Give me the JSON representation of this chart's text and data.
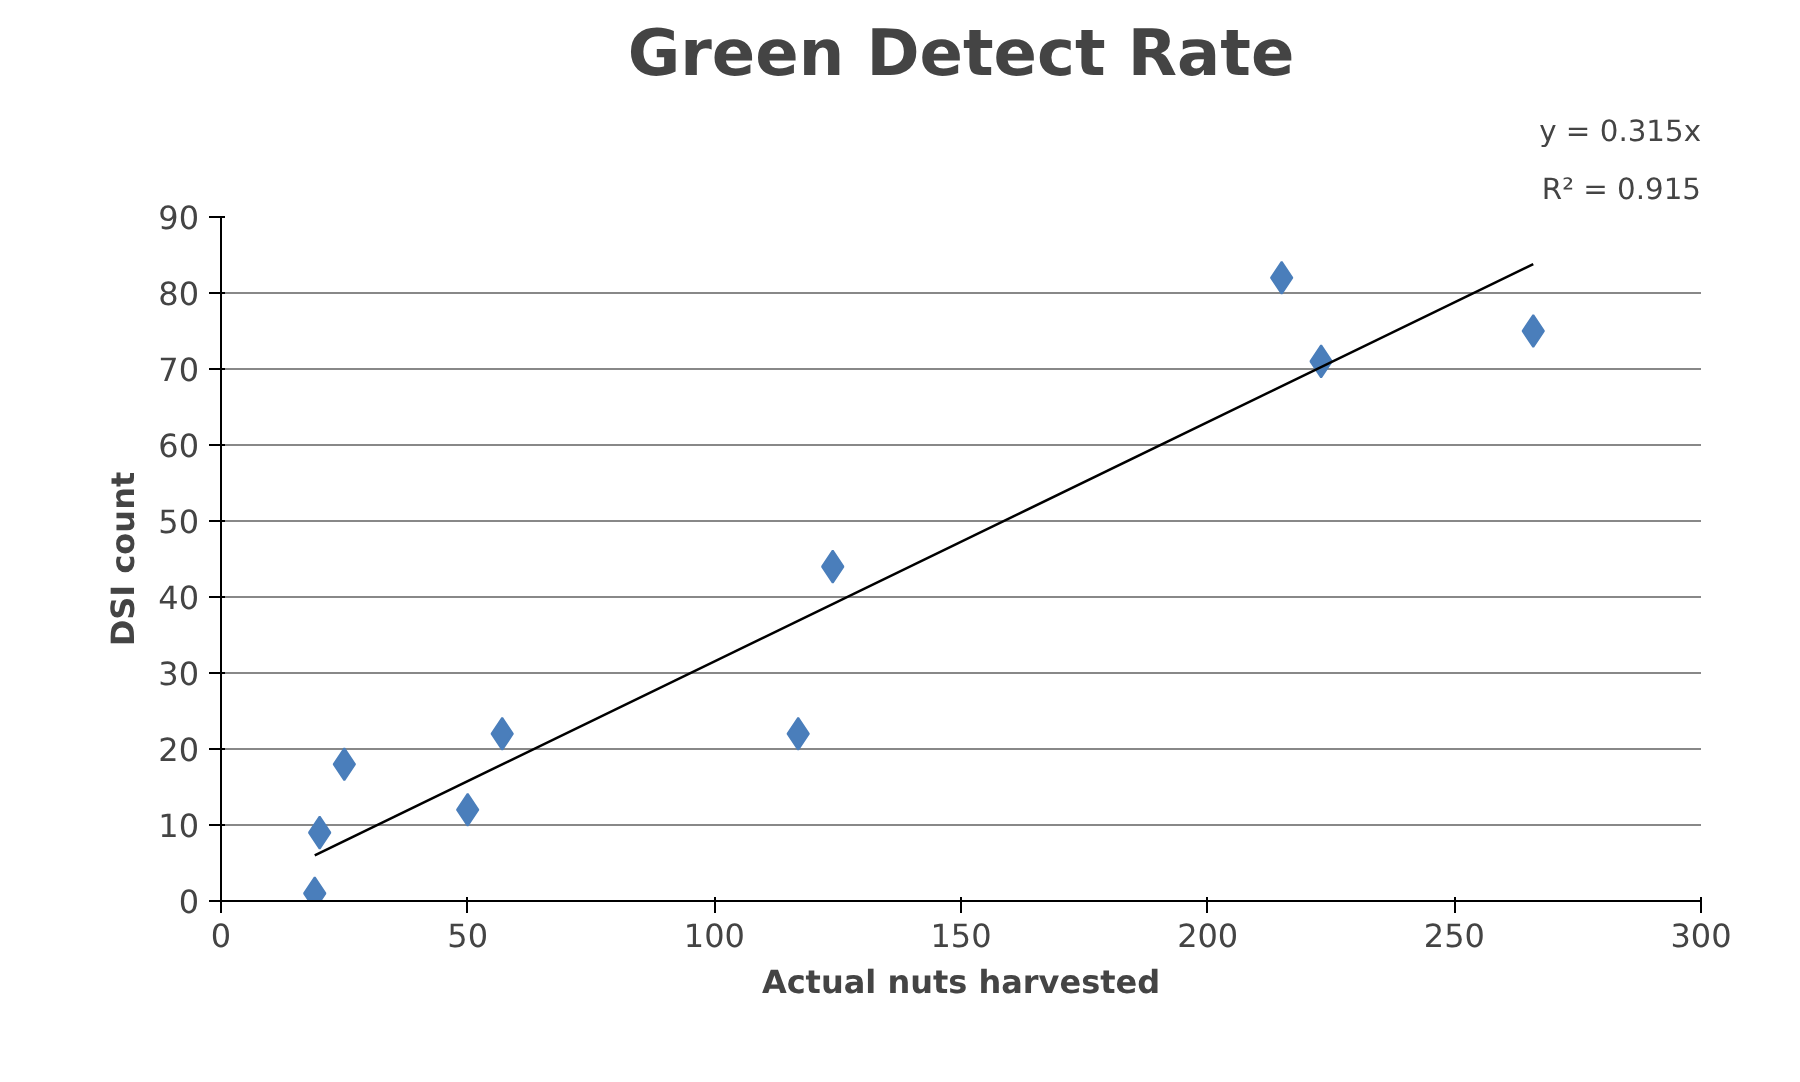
{
  "chart_data": {
    "type": "scatter",
    "title": "Green Detect Rate",
    "xlabel": "Actual nuts harvested",
    "ylabel": "DSI count",
    "x": [
      19,
      20,
      25,
      50,
      57,
      117,
      124,
      215,
      223,
      266
    ],
    "series": [
      {
        "color": "#4a7ebb",
        "marker": "diamond",
        "values": [
          1,
          9,
          18,
          12,
          22,
          22,
          44,
          82,
          71,
          75
        ]
      },
      {
        "type": "line",
        "color": "#000000",
        "x": [
          19,
          266
        ],
        "values": [
          6.0,
          83.8
        ],
        "marker": "none"
      }
    ],
    "xlim": [
      0,
      300
    ],
    "ylim": [
      0,
      90
    ],
    "xticks": [
      0,
      50,
      100,
      150,
      200,
      250,
      300
    ],
    "yticks": [
      0,
      10,
      20,
      30,
      40,
      50,
      60,
      70,
      80,
      90
    ],
    "grid": "y",
    "annotations": [
      "y = 0.315x",
      "R² = 0.915"
    ]
  }
}
